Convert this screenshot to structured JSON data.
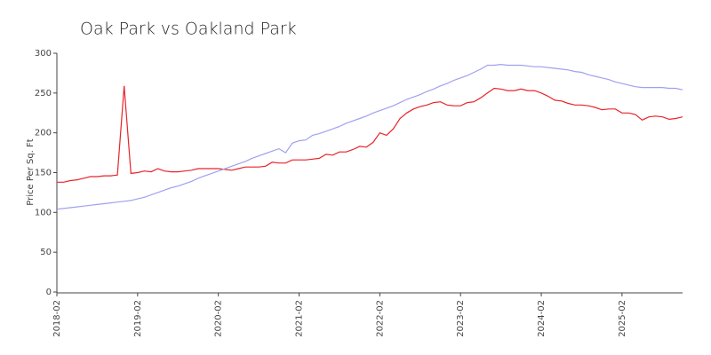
{
  "chart_data": {
    "type": "line",
    "title": "Oak Park vs Oakland Park",
    "ylabel": "Price Per Sq. Ft",
    "x": [
      "2018-02",
      "2018-03",
      "2018-04",
      "2018-05",
      "2018-06",
      "2018-07",
      "2018-08",
      "2018-09",
      "2018-10",
      "2018-11",
      "2018-12",
      "2019-01",
      "2019-02",
      "2019-03",
      "2019-04",
      "2019-05",
      "2019-06",
      "2019-07",
      "2019-08",
      "2019-09",
      "2019-10",
      "2019-11",
      "2019-12",
      "2020-01",
      "2020-02",
      "2020-03",
      "2020-04",
      "2020-05",
      "2020-06",
      "2020-07",
      "2020-08",
      "2020-09",
      "2020-10",
      "2020-11",
      "2020-12",
      "2021-01",
      "2021-02",
      "2021-03",
      "2021-04",
      "2021-05",
      "2021-06",
      "2021-07",
      "2021-08",
      "2021-09",
      "2021-10",
      "2021-11",
      "2021-12",
      "2022-01",
      "2022-02",
      "2022-03",
      "2022-04",
      "2022-05",
      "2022-06",
      "2022-07",
      "2022-08",
      "2022-09",
      "2022-10",
      "2022-11",
      "2022-12",
      "2023-01",
      "2023-02",
      "2023-03",
      "2023-04",
      "2023-05",
      "2023-06",
      "2023-07",
      "2023-08",
      "2023-09",
      "2023-10",
      "2023-11",
      "2023-12",
      "2024-01",
      "2024-02",
      "2024-03",
      "2024-04",
      "2024-05",
      "2024-06",
      "2024-07",
      "2024-08",
      "2024-09",
      "2024-10",
      "2024-11",
      "2024-12",
      "2025-01",
      "2025-02",
      "2025-03",
      "2025-04",
      "2025-05",
      "2025-06",
      "2025-07",
      "2025-08",
      "2025-09",
      "2025-10",
      "2025-11"
    ],
    "series": [
      {
        "color": "#e8242a",
        "values": [
          138,
          138,
          140,
          141,
          143,
          145,
          145,
          146,
          146,
          147,
          259,
          149,
          150,
          152,
          151,
          155,
          152,
          151,
          151,
          152,
          153,
          155,
          155,
          155,
          155,
          154,
          153,
          155,
          157,
          157,
          157,
          158,
          163,
          162,
          162,
          166,
          166,
          166,
          167,
          168,
          173,
          172,
          176,
          176,
          179,
          183,
          182,
          188,
          200,
          197,
          205,
          218,
          225,
          230,
          233,
          235,
          238,
          239,
          235,
          234,
          234,
          238,
          239,
          244,
          250,
          256,
          255,
          253,
          253,
          255,
          253,
          253,
          250,
          246,
          241,
          240,
          237,
          235,
          235,
          234,
          232,
          229,
          230,
          230,
          225,
          225,
          223,
          216,
          220,
          221,
          220,
          217,
          218,
          220
        ]
      },
      {
        "color": "#a0a0f0",
        "values": [
          104,
          105,
          106,
          107,
          108,
          109,
          110,
          111,
          112,
          113,
          114,
          115,
          117,
          119,
          122,
          125,
          128,
          131,
          133,
          136,
          139,
          143,
          146,
          149,
          152,
          155,
          158,
          161,
          164,
          168,
          171,
          174,
          177,
          180,
          175,
          187,
          190,
          191,
          197,
          199,
          202,
          205,
          208,
          212,
          215,
          218,
          221,
          225,
          228,
          231,
          234,
          238,
          242,
          245,
          248,
          252,
          255,
          259,
          262,
          266,
          269,
          272,
          276,
          280,
          285,
          285,
          286,
          285,
          285,
          285,
          284,
          283,
          283,
          282,
          281,
          280,
          279,
          277,
          276,
          273,
          271,
          269,
          267,
          264,
          262,
          260,
          258,
          257,
          257,
          257,
          257,
          256,
          256,
          254
        ]
      }
    ],
    "xticks": [
      "2018-02",
      "2019-02",
      "2020-02",
      "2021-02",
      "2022-02",
      "2023-02",
      "2024-02",
      "2025-02"
    ],
    "ylim": [
      0,
      300
    ],
    "yticks": [
      0,
      50,
      100,
      150,
      200,
      250,
      300
    ]
  }
}
